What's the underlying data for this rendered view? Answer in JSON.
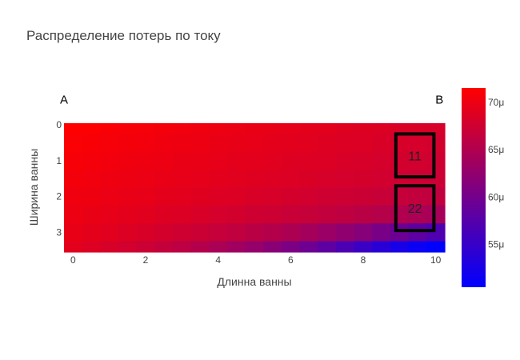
{
  "chart_data": {
    "type": "heatmap",
    "title": "Распределение потерь по току",
    "xlabel": "Длинна ванны",
    "ylabel": "Ширина ванны",
    "x_range": [
      -0.25,
      10.25
    ],
    "y_range": [
      -0.05,
      3.55
    ],
    "y_reversed": true,
    "x_ticks": [
      0,
      2,
      4,
      6,
      8,
      10
    ],
    "y_ticks": [
      0,
      1,
      2,
      3
    ],
    "x_tick_labels": [
      "0",
      "2",
      "4",
      "6",
      "8",
      "10"
    ],
    "y_tick_labels": [
      "0",
      "1",
      "2",
      "3"
    ],
    "colorscale": {
      "min_color": "#0000ff",
      "max_color": "#ff0000"
    },
    "zmin": 50.5,
    "zmax": 71.5,
    "value_unit": "μ",
    "colorbar_ticks": [
      55,
      60,
      65,
      70
    ],
    "colorbar_tick_labels": [
      "55μ",
      "60μ",
      "65μ",
      "70μ"
    ],
    "x_cells": [
      0,
      0.5,
      1,
      1.5,
      2,
      2.5,
      3,
      3.5,
      4,
      4.5,
      5,
      5.5,
      6,
      6.5,
      7,
      7.5,
      8,
      8.5,
      9,
      9.5,
      10
    ],
    "y_cells": [
      0,
      0.5,
      1,
      1.5,
      2,
      2.5,
      3,
      3.5
    ],
    "z": [
      [
        71.5,
        71.3,
        71.1,
        70.9,
        70.8,
        70.6,
        70.4,
        70.3,
        70.1,
        69.9,
        69.8,
        69.6,
        69.4,
        69.3,
        69.1,
        68.9,
        68.8,
        68.6,
        68.4,
        68.3,
        68.1
      ],
      [
        71.2,
        71.0,
        70.8,
        70.6,
        70.5,
        70.3,
        70.1,
        70.0,
        69.8,
        69.6,
        69.5,
        69.3,
        69.1,
        69.0,
        68.8,
        68.6,
        68.5,
        68.3,
        68.1,
        68.0,
        67.8
      ],
      [
        70.9,
        70.7,
        70.5,
        70.3,
        70.2,
        70.0,
        69.8,
        69.7,
        69.5,
        69.3,
        69.2,
        69.0,
        68.8,
        68.7,
        68.5,
        68.3,
        68.2,
        68.0,
        67.8,
        67.7,
        67.5
      ],
      [
        70.6,
        70.4,
        70.2,
        70.0,
        69.9,
        69.7,
        69.5,
        69.4,
        69.2,
        69.0,
        68.9,
        68.7,
        68.5,
        68.4,
        68.2,
        68.0,
        67.9,
        67.7,
        67.5,
        67.4,
        67.2
      ],
      [
        70.3,
        70.1,
        69.9,
        69.7,
        69.5,
        69.3,
        69.1,
        68.9,
        68.7,
        68.5,
        68.3,
        68.1,
        67.9,
        67.7,
        67.5,
        67.3,
        67.1,
        66.9,
        66.7,
        66.5,
        66.3
      ],
      [
        70.0,
        69.8,
        69.5,
        69.3,
        69.0,
        68.8,
        68.5,
        68.3,
        68.0,
        67.8,
        67.5,
        67.3,
        67.0,
        66.8,
        66.5,
        66.2,
        65.8,
        65.4,
        65.0,
        64.6,
        64.2
      ],
      [
        69.6,
        69.3,
        69.0,
        68.6,
        68.3,
        67.9,
        67.5,
        67.1,
        66.7,
        66.3,
        65.8,
        65.3,
        64.7,
        64.0,
        63.2,
        62.4,
        61.5,
        60.5,
        59.4,
        58.2,
        57.0
      ],
      [
        69.2,
        68.7,
        68.2,
        67.7,
        67.2,
        66.6,
        66.0,
        65.3,
        64.5,
        63.7,
        62.8,
        61.8,
        60.7,
        59.5,
        58.2,
        56.8,
        55.3,
        53.8,
        52.4,
        51.3,
        50.5
      ]
    ],
    "corner_labels": [
      {
        "text": "A",
        "x": -0.25,
        "y": -0.6
      },
      {
        "text": "B",
        "x": 10.1,
        "y": -0.6
      }
    ],
    "boxes": [
      {
        "label": "11",
        "x0": 8.9,
        "x1": 9.95,
        "y0": 0.25,
        "y1": 1.45
      },
      {
        "label": "22",
        "x0": 8.9,
        "x1": 9.95,
        "y0": 1.7,
        "y1": 2.95
      }
    ]
  }
}
